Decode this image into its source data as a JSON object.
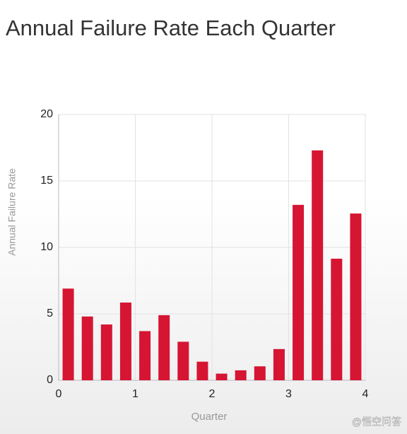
{
  "chart_data": {
    "type": "bar",
    "title": "Annual Failure Rate Each Quarter",
    "x_label": "Quarter",
    "y_label": "Annual Failure Rate",
    "x": [
      0.125,
      0.375,
      0.625,
      0.875,
      1.125,
      1.375,
      1.625,
      1.875,
      2.125,
      2.375,
      2.625,
      2.875,
      3.125,
      3.375,
      3.625,
      3.875
    ],
    "values": [
      6.9,
      4.8,
      4.2,
      5.85,
      3.7,
      4.9,
      2.9,
      1.4,
      0.5,
      0.75,
      1.05,
      2.35,
      13.2,
      17.3,
      9.15,
      12.55
    ],
    "color": "#d61533",
    "xlim": [
      0,
      4
    ],
    "xticks": [
      0,
      1,
      2,
      3,
      4
    ],
    "ylim": [
      0,
      20
    ],
    "yticks": [
      0,
      5,
      10,
      15,
      20
    ],
    "grid": true,
    "watermark": "@悟空问答"
  }
}
